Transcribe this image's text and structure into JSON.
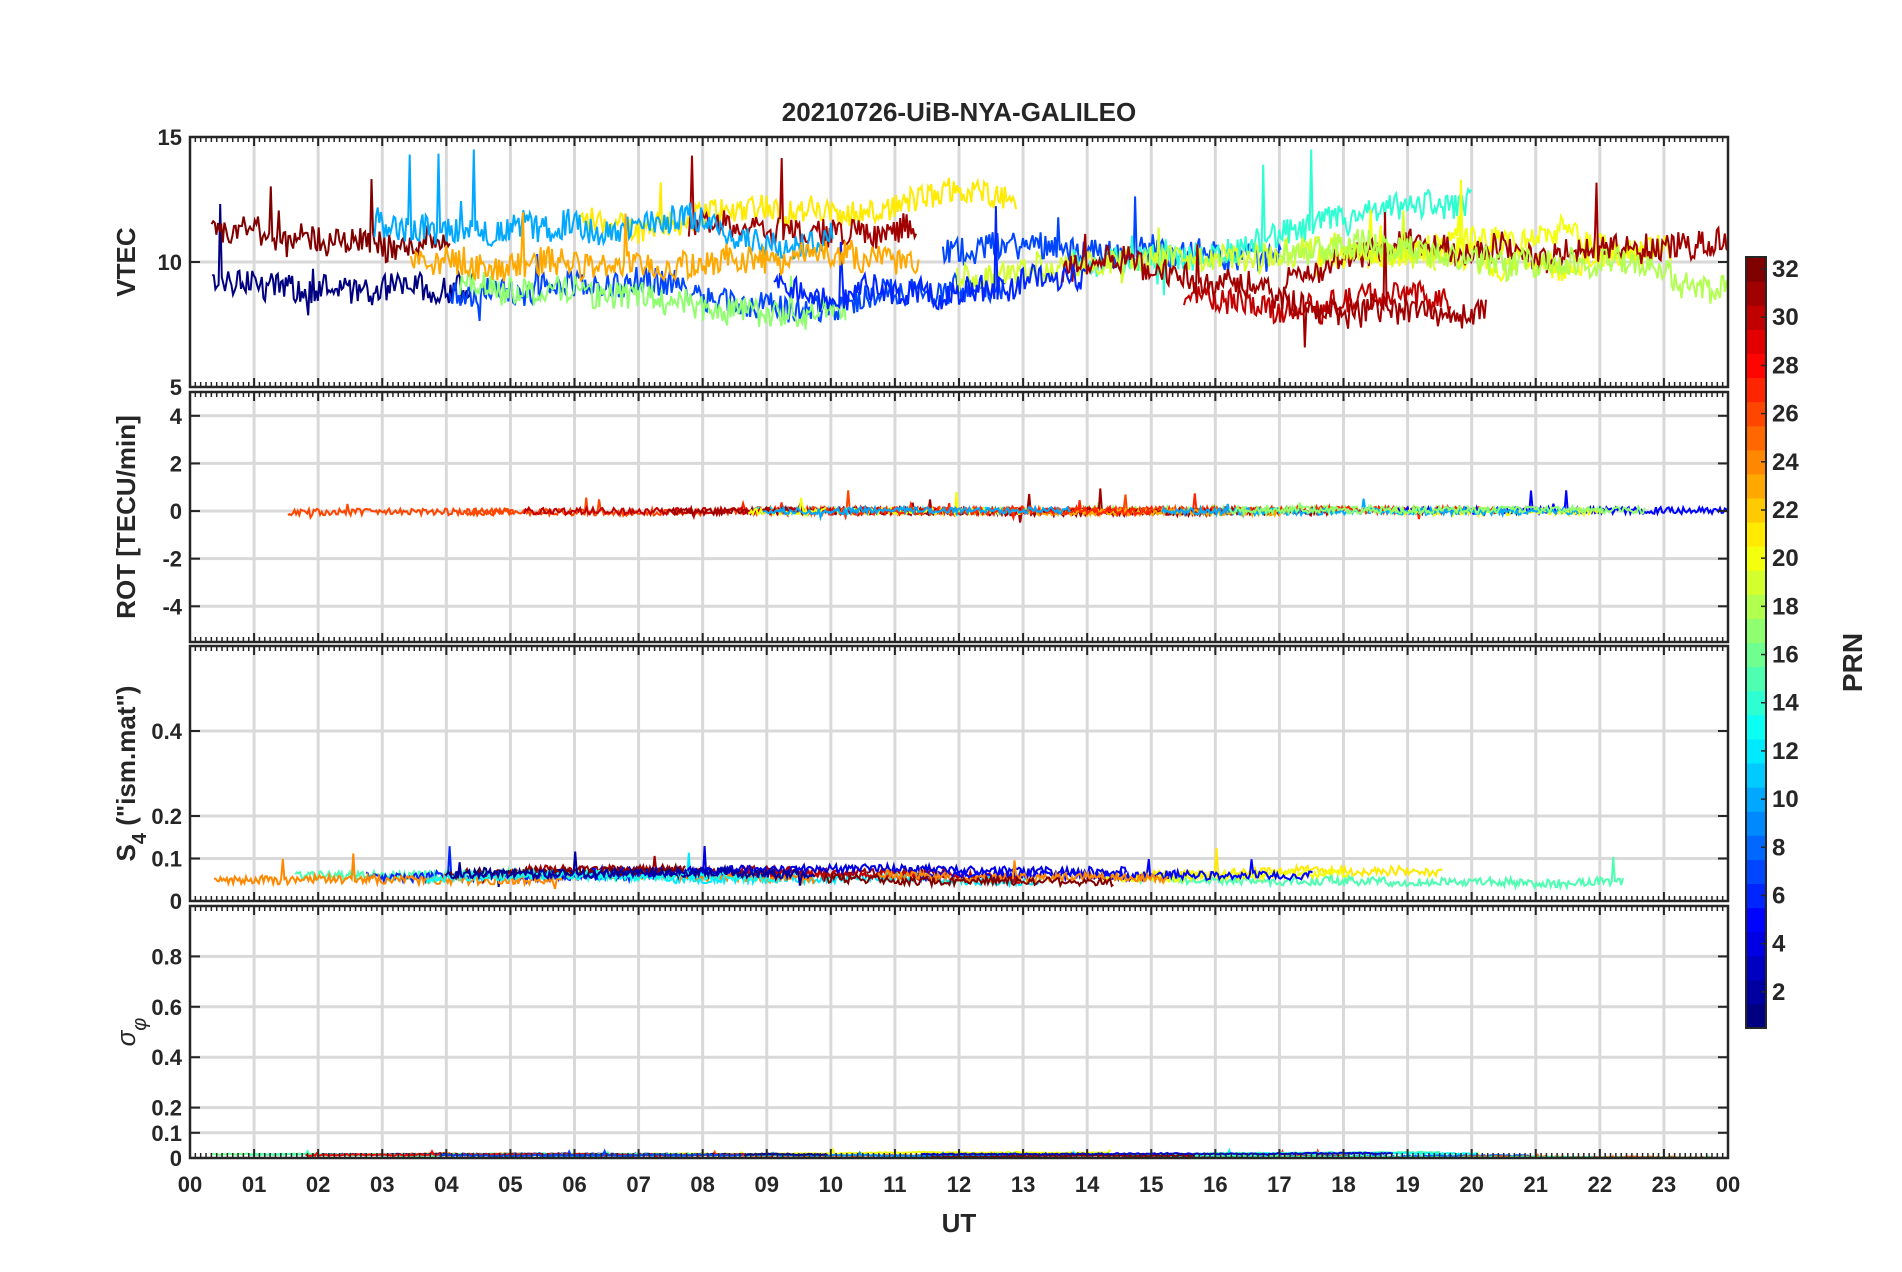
{
  "chart_data": [
    {
      "type": "line",
      "title": "20210726-UiB-NYA-GALILEO",
      "ylabel": "VTEC",
      "xlabel": "",
      "xlim": [
        0,
        24
      ],
      "ylim": [
        5,
        15
      ],
      "yticks": [
        5,
        10,
        15
      ],
      "ytick_labels": [
        "5",
        "10",
        "15"
      ],
      "grid": true,
      "trace_style": {
        "base": 10,
        "noise": 1.1,
        "wander": 1.6,
        "n": 18,
        "clipMin": 5.5,
        "clipMax": 14.5
      }
    },
    {
      "type": "line",
      "ylabel": "ROT [TECU/min]",
      "xlabel": "",
      "xlim": [
        0,
        24
      ],
      "ylim": [
        -5.5,
        5
      ],
      "yticks": [
        -4,
        -2,
        0,
        2,
        4
      ],
      "ytick_labels": [
        "-4",
        "-2",
        "0",
        "2",
        "4"
      ],
      "grid": true,
      "trace_style": {
        "base": 0,
        "noise": 0.28,
        "wander": 0.05,
        "n": 18,
        "clipMin": -2.6,
        "clipMax": 2.8
      }
    },
    {
      "type": "line",
      "ylabel_main": "S",
      "ylabel_sub": "4",
      "ylabel_tail": " (\"ism.mat\")",
      "xlabel": "",
      "xlim": [
        0,
        24
      ],
      "ylim": [
        0,
        0.6
      ],
      "yticks": [
        0,
        0.1,
        0.2,
        0.4
      ],
      "ytick_labels": [
        "0",
        "0.1",
        "0.2",
        "0.4"
      ],
      "grid": true,
      "trace_style": {
        "base": 0.06,
        "noise": 0.02,
        "wander": 0.015,
        "n": 18,
        "clipMin": 0.02,
        "clipMax": 0.28
      }
    },
    {
      "type": "line",
      "ylabel_main": "σ",
      "ylabel_sub": "φ",
      "xlabel": "UT",
      "xlim": [
        0,
        24
      ],
      "ylim": [
        0,
        1
      ],
      "yticks": [
        0,
        0.1,
        0.2,
        0.4,
        0.6,
        0.8
      ],
      "ytick_labels": [
        "0",
        "0.1",
        "0.2",
        "0.4",
        "0.6",
        "0.8"
      ],
      "grid": true,
      "trace_style": {
        "base": 0.01,
        "noise": 0.005,
        "wander": 0.008,
        "n": 18,
        "clipMin": 0.0,
        "clipMax": 0.1
      }
    }
  ],
  "x_ticks": [
    0,
    1,
    2,
    3,
    4,
    5,
    6,
    7,
    8,
    9,
    10,
    11,
    12,
    13,
    14,
    15,
    16,
    17,
    18,
    19,
    20,
    21,
    22,
    23,
    24
  ],
  "x_tick_labels": [
    "00",
    "01",
    "02",
    "03",
    "04",
    "05",
    "06",
    "07",
    "08",
    "09",
    "10",
    "11",
    "12",
    "13",
    "14",
    "15",
    "16",
    "17",
    "18",
    "19",
    "20",
    "21",
    "22",
    "23",
    "00"
  ],
  "colorbar": {
    "label": "PRN",
    "range": [
      1,
      32
    ],
    "ticks": [
      2,
      4,
      6,
      8,
      10,
      12,
      14,
      16,
      18,
      20,
      22,
      24,
      26,
      28,
      30,
      32
    ],
    "tick_labels": [
      "2",
      "4",
      "6",
      "8",
      "10",
      "12",
      "14",
      "16",
      "18",
      "20",
      "22",
      "24",
      "26",
      "28",
      "30",
      "32"
    ],
    "colormap": "jet"
  }
}
